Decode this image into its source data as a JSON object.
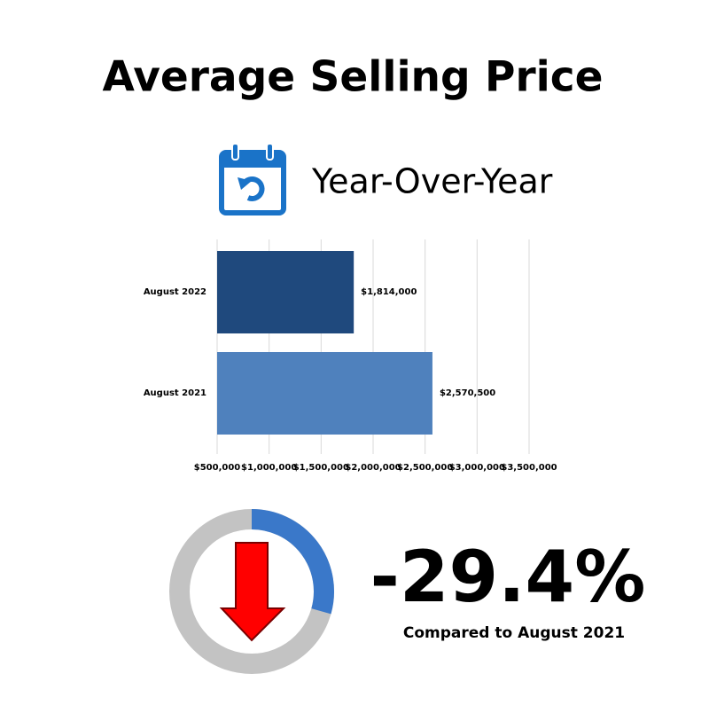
{
  "title": "Average Selling Price",
  "subtitle": "Year-Over-Year",
  "chart_data": [
    {
      "type": "hbar",
      "categories": [
        "August 2022",
        "August 2021"
      ],
      "values": [
        1814000,
        2570500
      ],
      "value_labels": [
        "$1,814,000",
        "$2,570,500"
      ],
      "colors": [
        "#1f497d",
        "#4f81bd"
      ],
      "xlim": [
        500000,
        3500000
      ],
      "xticks": [
        {
          "value": 500000,
          "label": "$500,000"
        },
        {
          "value": 1000000,
          "label": "$1,000,000"
        },
        {
          "value": 1500000,
          "label": "$1,500,000"
        },
        {
          "value": 2000000,
          "label": "$2,000,000"
        },
        {
          "value": 2500000,
          "label": "$2,500,000"
        },
        {
          "value": 3000000,
          "label": "$3,000,000"
        },
        {
          "value": 3500000,
          "label": "$3,500,000"
        }
      ],
      "grid": true
    },
    {
      "type": "donut",
      "value": -29.4,
      "value_label": "-29.4%",
      "caption": "Compared to August 2021",
      "color": "#3a78c9",
      "track_color": "#c3c3c3"
    }
  ]
}
